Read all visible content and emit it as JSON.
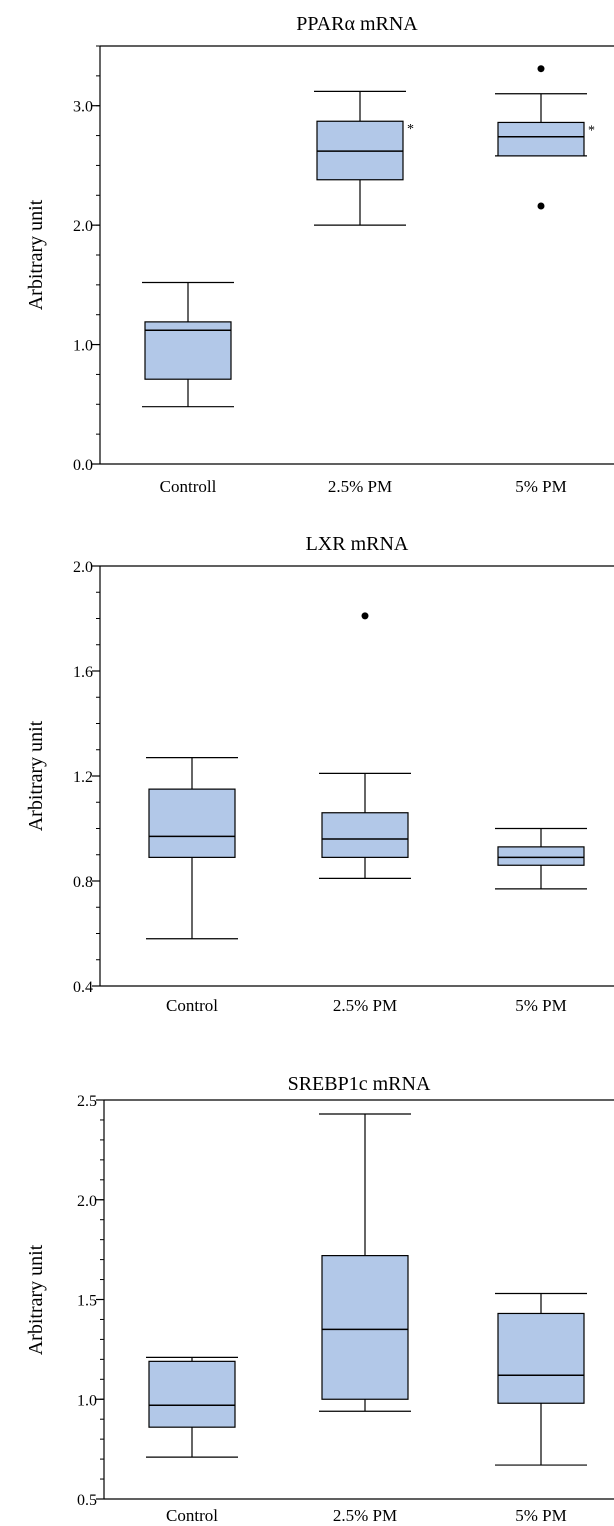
{
  "chart_data": [
    {
      "type": "box",
      "title": "PPARα mRNA",
      "ylabel": "Arbitrary unit",
      "xlabel": "",
      "ylim": [
        0.0,
        3.5
      ],
      "yticks": [
        0.0,
        1.0,
        2.0,
        3.0
      ],
      "ytick_labels": [
        "0.0",
        "1.0",
        "2.0",
        "3.0"
      ],
      "minor_step": 0.25,
      "box_color": "#b2c8e8",
      "categories": [
        "Controll",
        "2.5% PM",
        "5% PM"
      ],
      "boxes": [
        {
          "whisker_low": 0.48,
          "q1": 0.71,
          "median": 1.12,
          "q3": 1.19,
          "whisker_high": 1.52,
          "outliers": [],
          "marker": ""
        },
        {
          "whisker_low": 2.0,
          "q1": 2.38,
          "median": 2.62,
          "q3": 2.87,
          "whisker_high": 3.12,
          "outliers": [],
          "marker": "*"
        },
        {
          "whisker_low": 2.58,
          "q1": 2.58,
          "median": 2.74,
          "q3": 2.86,
          "whisker_high": 3.1,
          "outliers": [
            3.31,
            2.16
          ],
          "marker": "*"
        }
      ]
    },
    {
      "type": "box",
      "title": "LXR mRNA",
      "ylabel": "Arbitrary unit",
      "xlabel": "",
      "ylim": [
        0.4,
        2.0
      ],
      "yticks": [
        0.4,
        0.8,
        1.2,
        1.6,
        2.0
      ],
      "ytick_labels": [
        "0.4",
        "0.8",
        "1.2",
        "1.6",
        "2.0"
      ],
      "minor_step": 0.1,
      "box_color": "#b2c8e8",
      "categories": [
        "Control",
        "2.5% PM",
        "5% PM"
      ],
      "boxes": [
        {
          "whisker_low": 0.58,
          "q1": 0.89,
          "median": 0.97,
          "q3": 1.15,
          "whisker_high": 1.27,
          "outliers": [],
          "marker": ""
        },
        {
          "whisker_low": 0.81,
          "q1": 0.89,
          "median": 0.96,
          "q3": 1.06,
          "whisker_high": 1.21,
          "outliers": [
            1.81
          ],
          "marker": ""
        },
        {
          "whisker_low": 0.77,
          "q1": 0.86,
          "median": 0.89,
          "q3": 0.93,
          "whisker_high": 1.0,
          "outliers": [],
          "marker": ""
        }
      ]
    },
    {
      "type": "box",
      "title": "SREBP1c mRNA",
      "ylabel": "Arbitrary unit",
      "xlabel": "",
      "ylim": [
        0.5,
        2.5
      ],
      "yticks": [
        0.5,
        1.0,
        1.5,
        2.0,
        2.5
      ],
      "ytick_labels": [
        "0.5",
        "1.0",
        "1.5",
        "2.0",
        "2.5"
      ],
      "minor_step": 0.1,
      "box_color": "#b2c8e8",
      "categories": [
        "Control",
        "2.5% PM",
        "5% PM"
      ],
      "boxes": [
        {
          "whisker_low": 0.71,
          "q1": 0.86,
          "median": 0.97,
          "q3": 1.19,
          "whisker_high": 1.21,
          "outliers": [],
          "marker": ""
        },
        {
          "whisker_low": 0.94,
          "q1": 1.0,
          "median": 1.35,
          "q3": 1.72,
          "whisker_high": 2.43,
          "outliers": [],
          "marker": ""
        },
        {
          "whisker_low": 0.67,
          "q1": 0.98,
          "median": 1.12,
          "q3": 1.43,
          "whisker_high": 1.53,
          "outliers": [],
          "marker": ""
        }
      ]
    }
  ]
}
